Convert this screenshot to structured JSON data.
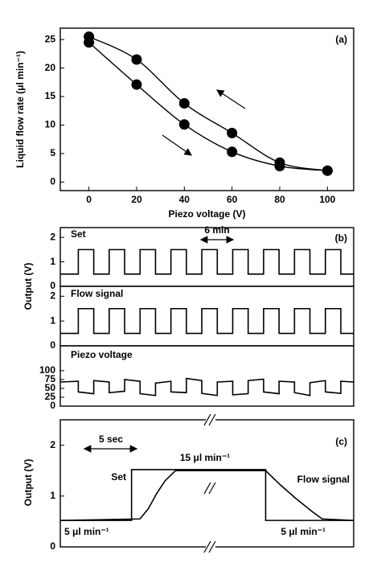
{
  "chart_data": [
    {
      "type": "line",
      "markers": true,
      "x": [
        0,
        20,
        40,
        60,
        80,
        100
      ],
      "series": [
        {
          "color": "#000000",
          "values": [
            25.5,
            21.5,
            13.8,
            8.6,
            3.4,
            2.0
          ]
        },
        {
          "color": "#000000",
          "values": [
            24.5,
            17.1,
            10.1,
            5.3,
            2.8,
            2.0
          ]
        }
      ],
      "xlim": [
        -12,
        111
      ],
      "ylim": [
        -1.5,
        27
      ],
      "xticks": [
        0,
        20,
        40,
        60,
        80,
        100
      ],
      "yticks": [
        0,
        5,
        10,
        15,
        20,
        25
      ],
      "xlabel": "Piezo voltage  (V)",
      "ylabel": "Liquid flow rate (μl min⁻¹)",
      "annotations": [
        "(a)"
      ]
    },
    {
      "type": "line",
      "x": [
        0,
        3.5,
        3.5,
        6.5,
        6.5,
        9.5,
        9.5,
        12.5,
        12.5,
        15.5,
        15.5,
        18.5,
        18.5,
        21.5,
        21.5,
        24.5,
        24.5,
        27.5,
        27.5,
        30.5,
        30.5,
        33.5,
        33.5,
        36.5,
        36.5,
        39.5,
        39.5,
        42.5,
        42.5,
        45.5,
        45.5,
        48.5,
        48.5,
        51.5,
        51.5,
        54.5,
        54.5,
        57
      ],
      "series": [
        {
          "color": "#000000",
          "values": [
            0.5,
            0.5,
            1.5,
            1.5,
            0.5,
            0.5,
            1.5,
            1.5,
            0.5,
            0.5,
            1.5,
            1.5,
            0.5,
            0.5,
            1.5,
            1.5,
            0.5,
            0.5,
            1.5,
            1.5,
            0.5,
            0.5,
            1.5,
            1.5,
            0.5,
            0.5,
            1.5,
            1.5,
            0.5,
            0.5,
            1.5,
            1.5,
            0.5,
            0.5,
            1.5,
            1.5,
            0.5,
            0.5
          ]
        }
      ],
      "xlim": [
        0,
        57
      ],
      "ylim": [
        0,
        2.4
      ],
      "yticks": [
        0,
        1,
        2
      ],
      "ylabel": "Output (V)",
      "annotations": [
        "Set",
        "6 min",
        "(b)"
      ]
    },
    {
      "type": "line",
      "x": [
        0,
        3.5,
        3.5,
        6.5,
        6.5,
        9.5,
        9.5,
        12.5,
        12.5,
        15.5,
        15.5,
        18.5,
        18.5,
        21.5,
        21.5,
        24.5,
        24.5,
        27.5,
        27.5,
        30.5,
        30.5,
        33.5,
        33.5,
        36.5,
        36.5,
        39.5,
        39.5,
        42.5,
        42.5,
        45.5,
        45.5,
        48.5,
        48.5,
        51.5,
        51.5,
        54.5,
        54.5,
        57
      ],
      "series": [
        {
          "color": "#000000",
          "values": [
            0.5,
            0.5,
            1.5,
            1.5,
            0.5,
            0.5,
            1.5,
            1.5,
            0.5,
            0.5,
            1.5,
            1.5,
            0.5,
            0.5,
            1.5,
            1.5,
            0.5,
            0.5,
            1.5,
            1.5,
            0.5,
            0.5,
            1.5,
            1.5,
            0.5,
            0.5,
            1.5,
            1.5,
            0.5,
            0.5,
            1.5,
            1.5,
            0.5,
            0.5,
            1.5,
            1.5,
            0.5,
            0.5
          ]
        }
      ],
      "xlim": [
        0,
        57
      ],
      "ylim": [
        0,
        2.4
      ],
      "yticks": [
        0,
        1,
        2
      ],
      "annotations": [
        "Flow signal"
      ]
    },
    {
      "type": "line",
      "x": [
        0,
        3.5,
        3.5,
        6.5,
        6.5,
        9.5,
        9.5,
        12.5,
        12.5,
        15.5,
        15.5,
        18.5,
        18.5,
        21.5,
        21.5,
        24.5,
        24.5,
        27.5,
        27.5,
        30.5,
        30.5,
        33.5,
        33.5,
        36.5,
        36.5,
        39.5,
        39.5,
        42.5,
        42.5,
        45.5,
        45.5,
        48.5,
        48.5,
        51.5,
        51.5,
        54.5,
        54.5,
        57
      ],
      "series": [
        {
          "color": "#000000",
          "values": [
            68,
            70,
            40,
            35,
            72,
            68,
            38,
            42,
            75,
            70,
            35,
            30,
            65,
            70,
            40,
            38,
            78,
            72,
            36,
            30,
            68,
            70,
            32,
            35,
            72,
            76,
            40,
            35,
            70,
            68,
            38,
            30,
            66,
            72,
            40,
            36,
            70,
            68
          ]
        }
      ],
      "xlim": [
        0,
        57
      ],
      "ylim": [
        0,
        170
      ],
      "yticks": [
        0,
        25,
        50,
        75,
        100
      ],
      "annotations": [
        "Piezo voltage"
      ]
    },
    {
      "type": "line",
      "series": [
        {
          "color": "#000000",
          "x": [
            0,
            6.8,
            6.8,
            19.6,
            19.6,
            28
          ],
          "values": [
            0.52,
            0.52,
            1.52,
            1.52,
            0.52,
            0.52
          ]
        },
        {
          "color": "#000000",
          "x": [
            0,
            7.6,
            8.4,
            9.2,
            10,
            11,
            19.6,
            21,
            22.5,
            24,
            25,
            28
          ],
          "values": [
            0.52,
            0.55,
            0.75,
            1.05,
            1.3,
            1.5,
            1.5,
            1.22,
            0.95,
            0.7,
            0.55,
            0.52
          ]
        }
      ],
      "xlim": [
        0,
        28
      ],
      "ylim": [
        0,
        2.5
      ],
      "yticks": [
        0,
        1,
        2
      ],
      "ylabel": "Output (V)",
      "annotations": [
        "5 sec",
        "15 μl min⁻¹",
        "Set",
        "Flow signal",
        "5 μl min⁻¹",
        "5 μl min⁻¹",
        "(c)"
      ]
    }
  ]
}
